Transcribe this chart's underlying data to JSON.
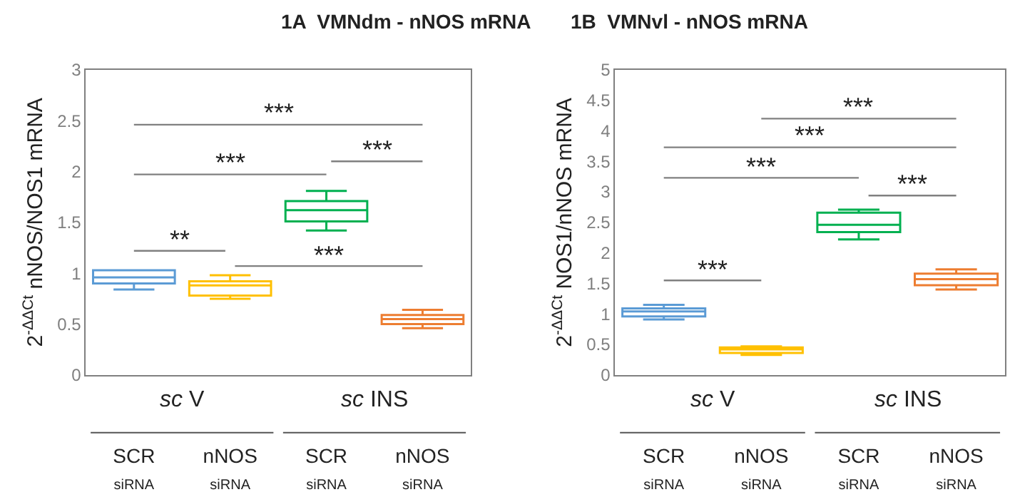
{
  "chart_data": [
    {
      "type": "box",
      "title": "1A  VMNdm - nNOS mRNA",
      "ylabel": "2$^{-ΔΔCt}$ nNOS/NOS1 mRNA",
      "categories": [
        "SCR siRNA",
        "nNOS siRNA",
        "SCR siRNA",
        "nNOS siRNA"
      ],
      "colors": [
        "#5b9bd5",
        "#ffc000",
        "#00b050",
        "#ed7d31"
      ],
      "boxes": [
        {
          "low": 0.84,
          "q1": 0.9,
          "median": 0.96,
          "q3": 1.03,
          "high": 1.03
        },
        {
          "low": 0.75,
          "q1": 0.78,
          "median": 0.88,
          "q3": 0.92,
          "high": 0.98
        },
        {
          "low": 1.42,
          "q1": 1.51,
          "median": 1.62,
          "q3": 1.71,
          "high": 1.81
        },
        {
          "low": 0.46,
          "q1": 0.5,
          "median": 0.55,
          "q3": 0.59,
          "high": 0.64
        }
      ],
      "ylim": [
        0,
        3
      ],
      "yticks": [
        0,
        0.5,
        1,
        1.5,
        2,
        2.5,
        3
      ],
      "annotations": [
        "**",
        "***",
        "***",
        "***",
        "***",
        "sc V",
        "sc INS"
      ]
    },
    {
      "type": "box",
      "title": "1B  VMNvl - nNOS mRNA",
      "ylabel": "2$^{-ΔΔCt}$ NOS1/nNOS mRNA",
      "categories": [
        "SCR siRNA",
        "nNOS siRNA",
        "SCR siRNA",
        "nNOS siRNA"
      ],
      "colors": [
        "#5b9bd5",
        "#ffc000",
        "#00b050",
        "#ed7d31"
      ],
      "boxes": [
        {
          "low": 0.91,
          "q1": 0.96,
          "median": 1.04,
          "q3": 1.09,
          "high": 1.15
        },
        {
          "low": 0.33,
          "q1": 0.36,
          "median": 0.42,
          "q3": 0.45,
          "high": 0.47
        },
        {
          "low": 2.22,
          "q1": 2.34,
          "median": 2.46,
          "q3": 2.66,
          "high": 2.71
        },
        {
          "low": 1.4,
          "q1": 1.47,
          "median": 1.57,
          "q3": 1.66,
          "high": 1.73
        }
      ],
      "ylim": [
        0,
        5
      ],
      "yticks": [
        0,
        0.5,
        1,
        1.5,
        2,
        2.5,
        3,
        3.5,
        4,
        4.5,
        5
      ],
      "annotations": [
        "***",
        "***",
        "***",
        "***",
        "***",
        "sc V",
        "sc INS"
      ]
    }
  ]
}
